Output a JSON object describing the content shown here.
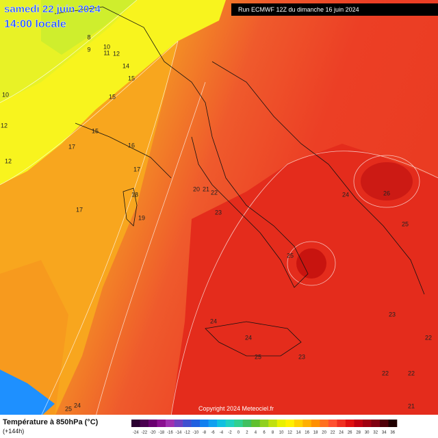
{
  "header": {
    "date": "samedi 22 juin 2024",
    "time": "14:00 locale",
    "run": "Run ECMWF 12Z du dimanche 16 juin 2024"
  },
  "copyright": "Copyright 2024 Meteociel.fr",
  "legend": {
    "title": "Température à 850hPa (°C)",
    "lead": "(+144h)",
    "ticks": [
      -24,
      -22,
      -20,
      -18,
      -16,
      -14,
      -12,
      -10,
      -8,
      -6,
      -4,
      -2,
      0,
      2,
      4,
      6,
      8,
      10,
      12,
      14,
      16,
      18,
      20,
      22,
      24,
      26,
      28,
      30,
      32,
      34,
      36
    ],
    "colors": [
      "#2a0030",
      "#4a0050",
      "#6a0070",
      "#8a1090",
      "#a030b0",
      "#7040c0",
      "#4050d0",
      "#2060e0",
      "#1080f0",
      "#10a0f0",
      "#10c0e0",
      "#20d0c0",
      "#30d090",
      "#40c060",
      "#60c030",
      "#90d020",
      "#c0e010",
      "#e8f000",
      "#fff000",
      "#ffd000",
      "#ffb000",
      "#ff9000",
      "#ff7020",
      "#ff5030",
      "#f03020",
      "#e01010",
      "#c00010",
      "#a00010",
      "#800010",
      "#500008",
      "#200000"
    ]
  },
  "contour_labels": [
    "8",
    "9",
    "10",
    "11",
    "12",
    "14",
    "15",
    "10",
    "15",
    "12",
    "15",
    "17",
    "16",
    "12",
    "17",
    "18",
    "17",
    "19",
    "20",
    "21",
    "22",
    "23",
    "24",
    "26",
    "25",
    "25",
    "24",
    "24",
    "25",
    "23",
    "23",
    "22",
    "22",
    "22",
    "21",
    "24",
    "25"
  ]
}
